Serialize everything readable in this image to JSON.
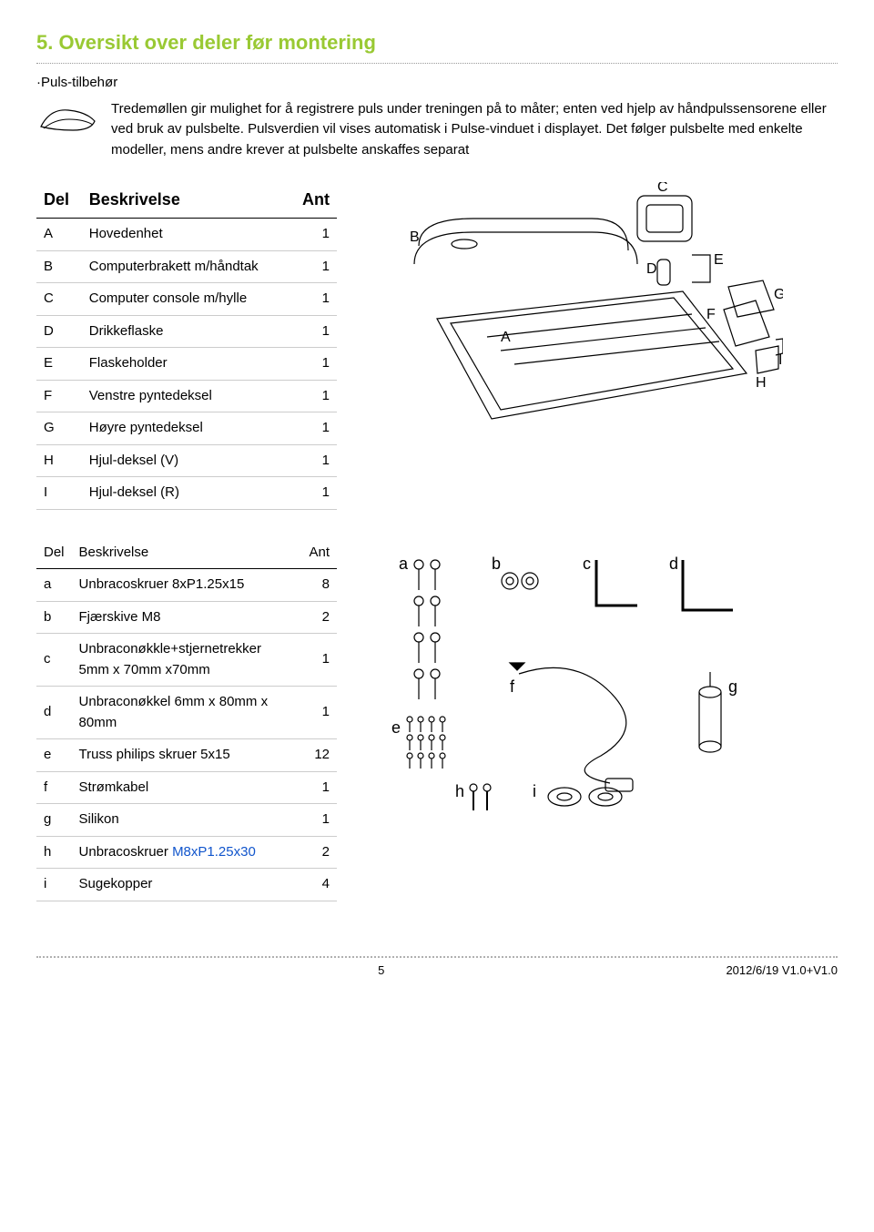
{
  "section_title": "5. Oversikt over deler før montering",
  "subhead_puls": "·Puls-tilbehør",
  "intro_text": "Tredemøllen gir mulighet for å registrere puls under treningen på to måter; enten ved hjelp av håndpulssensorene eller ved bruk av pulsbelte. Pulsverdien vil vises automatisk i Pulse-vinduet i displayet. Det følger pulsbelte med enkelte modeller, mens andre krever at pulsbelte anskaffes separat",
  "main_parts": {
    "headers": {
      "del": "Del",
      "besk": "Beskrivelse",
      "ant": "Ant"
    },
    "rows": [
      {
        "id": "A",
        "name": "Hovedenhet",
        "qty": "1"
      },
      {
        "id": "B",
        "name": "Computerbrakett m/håndtak",
        "qty": "1"
      },
      {
        "id": "C",
        "name": "Computer console m/hylle",
        "qty": "1"
      },
      {
        "id": "D",
        "name": "Drikkeflaske",
        "qty": "1"
      },
      {
        "id": "E",
        "name": "Flaskeholder",
        "qty": "1"
      },
      {
        "id": "F",
        "name": "Venstre pyntedeksel",
        "qty": "1"
      },
      {
        "id": "G",
        "name": "Høyre pyntedeksel",
        "qty": "1"
      },
      {
        "id": "H",
        "name": "Hjul-deksel (V)",
        "qty": "1"
      },
      {
        "id": "I",
        "name": "Hjul-deksel (R)",
        "qty": "1"
      }
    ]
  },
  "hw_parts": {
    "headers": {
      "del": "Del",
      "besk": "Beskrivelse",
      "ant": "Ant"
    },
    "rows": [
      {
        "id": "a",
        "name": "Unbracoskruer 8xP1.25x15",
        "qty": "8"
      },
      {
        "id": "b",
        "name": "Fjærskive M8",
        "qty": "2"
      },
      {
        "id": "c",
        "name": "Unbraconøkkle+stjernetrekker 5mm x 70mm x70mm",
        "qty": "1"
      },
      {
        "id": "d",
        "name": "Unbraconøkkel 6mm x 80mm x 80mm",
        "qty": "1"
      },
      {
        "id": "e",
        "name": "Truss philips skruer 5x15",
        "qty": "12"
      },
      {
        "id": "f",
        "name": "Strømkabel",
        "qty": "1"
      },
      {
        "id": "g",
        "name": "Silikon",
        "qty": "1"
      },
      {
        "id": "h",
        "name": "Unbracoskruer M8xP1.25x30",
        "name_blue": "M8xP1.25x30",
        "name_black": "Unbracoskruer ",
        "qty": "2"
      },
      {
        "id": "i",
        "name": "Sugekopper",
        "qty": "4"
      }
    ]
  },
  "diagram_main_labels": [
    "A",
    "B",
    "C",
    "D",
    "E",
    "F",
    "G",
    "H",
    "I"
  ],
  "diagram_hw_labels": [
    "a",
    "b",
    "c",
    "d",
    "e",
    "f",
    "g",
    "h",
    "i"
  ],
  "footer": {
    "page": "5",
    "version": "2012/6/19 V1.0+V1.0"
  }
}
